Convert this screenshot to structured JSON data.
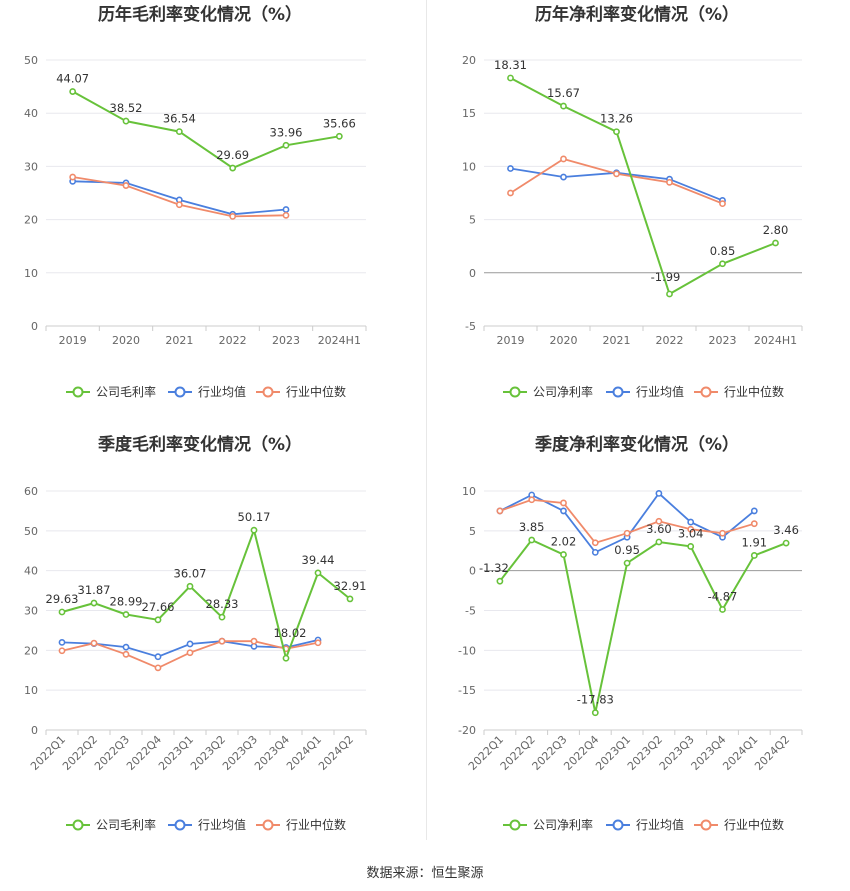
{
  "source": "数据来源：恒生聚源",
  "colors": {
    "company": "#67c23a",
    "avg": "#4a7fde",
    "median": "#f08a6a",
    "grid": "#e8e8ee",
    "axis": "#666666"
  },
  "chart_data": [
    {
      "type": "line",
      "title": "历年毛利率变化情况（%）",
      "categories": [
        "2019",
        "2020",
        "2021",
        "2022",
        "2023",
        "2024H1"
      ],
      "ylim": [
        0,
        50
      ],
      "yticks": [
        0,
        10,
        20,
        30,
        40,
        50
      ],
      "rotate_x": false,
      "legend_position": "bottom",
      "series": [
        {
          "name": "公司毛利率",
          "key": "company",
          "values": [
            44.07,
            38.52,
            36.54,
            29.69,
            33.96,
            35.66
          ],
          "labels": [
            "44.07",
            "38.52",
            "36.54",
            "29.69",
            "33.96",
            "35.66"
          ]
        },
        {
          "name": "行业均值",
          "key": "avg",
          "values": [
            27.2,
            26.9,
            23.7,
            21.0,
            21.9,
            null
          ]
        },
        {
          "name": "行业中位数",
          "key": "median",
          "values": [
            28.0,
            26.4,
            22.8,
            20.6,
            20.8,
            null
          ]
        }
      ]
    },
    {
      "type": "line",
      "title": "历年净利率变化情况（%）",
      "categories": [
        "2019",
        "2020",
        "2021",
        "2022",
        "2023",
        "2024H1"
      ],
      "ylim": [
        -5,
        20
      ],
      "yticks": [
        -5,
        0,
        5,
        10,
        15,
        20
      ],
      "rotate_x": false,
      "legend_position": "bottom",
      "series": [
        {
          "name": "公司净利率",
          "key": "company",
          "values": [
            18.31,
            15.67,
            13.26,
            -1.99,
            0.85,
            2.8
          ],
          "labels": [
            "18.31",
            "15.67",
            "13.26",
            "-1.99",
            "0.85",
            "2.80"
          ]
        },
        {
          "name": "行业均值",
          "key": "avg",
          "values": [
            9.8,
            9.0,
            9.4,
            8.8,
            6.8,
            null
          ]
        },
        {
          "name": "行业中位数",
          "key": "median",
          "values": [
            7.5,
            10.7,
            9.3,
            8.5,
            6.5,
            null
          ]
        }
      ]
    },
    {
      "type": "line",
      "title": "季度毛利率变化情况（%）",
      "categories": [
        "2022Q1",
        "2022Q2",
        "2022Q3",
        "2022Q4",
        "2023Q1",
        "2023Q2",
        "2023Q3",
        "2023Q4",
        "2024Q1",
        "2024Q2"
      ],
      "ylim": [
        0,
        60
      ],
      "yticks": [
        0,
        10,
        20,
        30,
        40,
        50,
        60
      ],
      "rotate_x": true,
      "legend_position": "bottom",
      "series": [
        {
          "name": "公司毛利率",
          "key": "company",
          "values": [
            29.63,
            31.87,
            28.99,
            27.66,
            36.07,
            28.33,
            50.17,
            18.02,
            39.44,
            32.91
          ],
          "labels": [
            "29.63",
            "31.87",
            "28.99",
            "27.66",
            "36.07",
            "28.33",
            "50.17",
            "18.02",
            "39.44",
            "32.91"
          ]
        },
        {
          "name": "行业均值",
          "key": "avg",
          "values": [
            22.0,
            21.7,
            20.8,
            18.4,
            21.6,
            22.3,
            21.0,
            20.7,
            22.6,
            null
          ]
        },
        {
          "name": "行业中位数",
          "key": "median",
          "values": [
            19.9,
            21.8,
            19.0,
            15.6,
            19.4,
            22.3,
            22.3,
            20.4,
            21.9,
            null
          ]
        }
      ]
    },
    {
      "type": "line",
      "title": "季度净利率变化情况（%）",
      "categories": [
        "2022Q1",
        "2022Q2",
        "2022Q3",
        "2022Q4",
        "2023Q1",
        "2023Q2",
        "2023Q3",
        "2023Q4",
        "2024Q1",
        "2024Q2"
      ],
      "ylim": [
        -20,
        10
      ],
      "yticks": [
        -20,
        -15,
        -10,
        -5,
        0,
        5,
        10
      ],
      "rotate_x": true,
      "legend_position": "bottom",
      "series": [
        {
          "name": "公司净利率",
          "key": "company",
          "values": [
            -1.32,
            3.85,
            2.02,
            -17.83,
            0.95,
            3.6,
            3.04,
            -4.87,
            1.91,
            3.46
          ],
          "labels": [
            "-1.32",
            "3.85",
            "2.02",
            "-17.83",
            "0.95",
            "3.60",
            "3.04",
            "-4.87",
            "1.91",
            "3.46"
          ]
        },
        {
          "name": "行业均值",
          "key": "avg",
          "values": [
            7.5,
            9.5,
            7.5,
            2.3,
            4.2,
            9.7,
            6.1,
            4.2,
            7.5,
            null
          ]
        },
        {
          "name": "行业中位数",
          "key": "median",
          "values": [
            7.5,
            8.9,
            8.5,
            3.5,
            4.7,
            6.2,
            5.2,
            4.7,
            5.9,
            null
          ]
        }
      ]
    }
  ]
}
